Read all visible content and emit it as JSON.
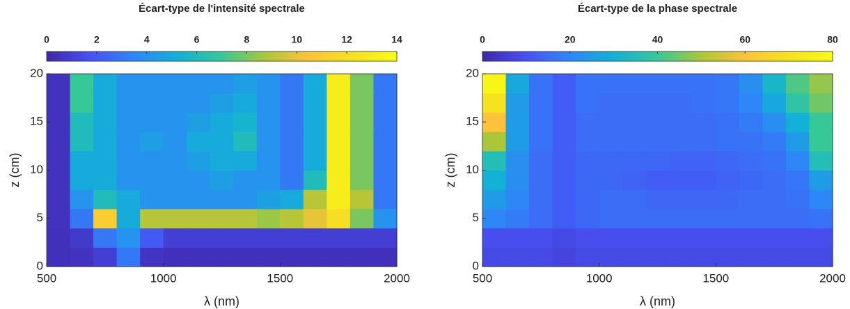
{
  "chart_data": [
    {
      "type": "heatmap",
      "title": "Écart-type de l'intensité spectrale",
      "xlabel": "λ (nm)",
      "ylabel": "z (cm)",
      "colormap": "parula",
      "x": [
        550,
        650,
        750,
        850,
        950,
        1050,
        1150,
        1250,
        1350,
        1450,
        1550,
        1650,
        1750,
        1850,
        1950
      ],
      "y": [
        1,
        3,
        5,
        7,
        9,
        11,
        13,
        15,
        17,
        19
      ],
      "values": [
        [
          0.4,
          0.5,
          1,
          3,
          0.6,
          0.4,
          0.4,
          0.4,
          0.4,
          0.4,
          0.4,
          0.4,
          0.4,
          0.4,
          0.4
        ],
        [
          0.4,
          0.8,
          3,
          4,
          2,
          1,
          1,
          1,
          1,
          1,
          1,
          1,
          1,
          1,
          1
        ],
        [
          0.5,
          3,
          11,
          5,
          9,
          9,
          9,
          9,
          9,
          8.5,
          9,
          10,
          12,
          8,
          4
        ],
        [
          0.5,
          4,
          6,
          5,
          4,
          4,
          4,
          4,
          4,
          4.5,
          5,
          9,
          13,
          9,
          3
        ],
        [
          0.5,
          5,
          5,
          4,
          4,
          4,
          4,
          4.5,
          4,
          4,
          3,
          6,
          13,
          8,
          3
        ],
        [
          0.5,
          5,
          5,
          4,
          4,
          4,
          4.5,
          5,
          5,
          4,
          3,
          5,
          13,
          8,
          3
        ],
        [
          0.5,
          6,
          5,
          4,
          4.5,
          4,
          5,
          5,
          6,
          4,
          3,
          5,
          13,
          8,
          3
        ],
        [
          0.5,
          6,
          5,
          4,
          4,
          4,
          4.5,
          5,
          5.5,
          4,
          3,
          5,
          13,
          8,
          3
        ],
        [
          0.5,
          7,
          5,
          4,
          4,
          4,
          4,
          4.5,
          5,
          4,
          3,
          5,
          13,
          8,
          3
        ],
        [
          0.5,
          7,
          5,
          4,
          4,
          4,
          4,
          4,
          4.5,
          4,
          3,
          5,
          13,
          8,
          3
        ]
      ],
      "xlim": [
        500,
        2000
      ],
      "xticks": [
        500,
        1000,
        1500,
        2000
      ],
      "ylim": [
        0,
        20
      ],
      "yticks": [
        0,
        5,
        10,
        15,
        20
      ],
      "clim": [
        0,
        14
      ],
      "cticks": [
        0,
        2,
        4,
        6,
        8,
        10,
        12,
        14
      ]
    },
    {
      "type": "heatmap",
      "title": "Écart-type de la phase spectrale",
      "xlabel": "λ (nm)",
      "ylabel": "z (cm)",
      "colormap": "parula",
      "x": [
        550,
        650,
        750,
        850,
        950,
        1050,
        1150,
        1250,
        1350,
        1450,
        1550,
        1650,
        1750,
        1850,
        1950
      ],
      "y": [
        1,
        3,
        5,
        7,
        9,
        11,
        13,
        15,
        17,
        19
      ],
      "values": [
        [
          8,
          8,
          8,
          7,
          8,
          8,
          8,
          8,
          8,
          8,
          8,
          8,
          8,
          8,
          8
        ],
        [
          9,
          9,
          9,
          8,
          9,
          9,
          9,
          9,
          9,
          9,
          9,
          9,
          9,
          9,
          9
        ],
        [
          20,
          18,
          15,
          12,
          14,
          15,
          15,
          15,
          15,
          15,
          15,
          15,
          15,
          15,
          16
        ],
        [
          25,
          20,
          15,
          12,
          14,
          15,
          15,
          14,
          14,
          14,
          14,
          15,
          15,
          16,
          20
        ],
        [
          30,
          22,
          15,
          12,
          14,
          14,
          13,
          12,
          12,
          12,
          13,
          14,
          15,
          17,
          25
        ],
        [
          35,
          22,
          15,
          12,
          14,
          14,
          14,
          14,
          13,
          13,
          14,
          15,
          16,
          20,
          35
        ],
        [
          50,
          25,
          16,
          12,
          15,
          15,
          15,
          15,
          15,
          15,
          16,
          16,
          18,
          25,
          40
        ],
        [
          60,
          25,
          16,
          12,
          15,
          15,
          15,
          15,
          15,
          15,
          16,
          18,
          22,
          30,
          40
        ],
        [
          70,
          25,
          16,
          12,
          16,
          15,
          15,
          15,
          15,
          16,
          17,
          20,
          28,
          38,
          45
        ],
        [
          78,
          28,
          16,
          12,
          16,
          16,
          16,
          16,
          16,
          16,
          17,
          22,
          32,
          42,
          48
        ]
      ],
      "xlim": [
        500,
        2000
      ],
      "xticks": [
        500,
        1000,
        1500,
        2000
      ],
      "ylim": [
        0,
        20
      ],
      "yticks": [
        0,
        5,
        10,
        15,
        20
      ],
      "clim": [
        0,
        80
      ],
      "cticks": [
        0,
        20,
        40,
        60,
        80
      ]
    }
  ]
}
